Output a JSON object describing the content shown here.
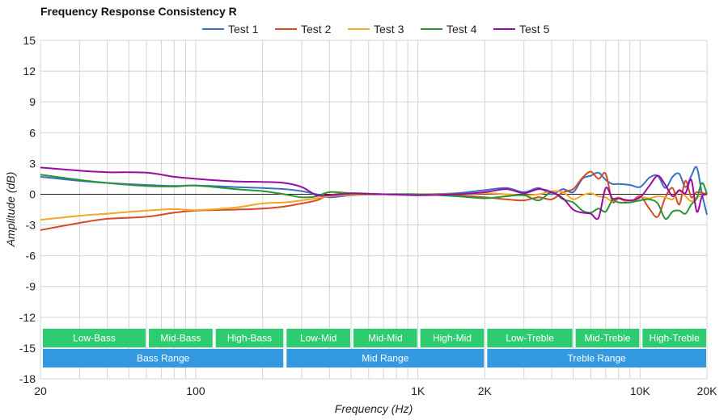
{
  "chart_data": {
    "type": "line",
    "title": "Frequency Response Consistency R",
    "xlabel": "Frequency (Hz)",
    "ylabel": "Amplitude (dB)",
    "x_scale": "log",
    "xlim": [
      20,
      20000
    ],
    "ylim": [
      -18,
      15
    ],
    "y_ticks": [
      15,
      12,
      9,
      6,
      3,
      0,
      -3,
      -6,
      -9,
      -12,
      -15,
      -18
    ],
    "y_tick_labels": [
      "15",
      "12",
      "9",
      "6",
      "3",
      "0",
      "-3",
      "-6",
      "-9",
      "-12",
      "-15",
      "-18"
    ],
    "x_ticks": [
      20,
      100,
      1000,
      2000,
      10000,
      20000
    ],
    "x_tick_labels": [
      "20",
      "100",
      "1K",
      "2K",
      "10K",
      "20K"
    ],
    "grid": true,
    "legend_position": "top-center",
    "series": [
      {
        "name": "Test 1",
        "color": "#3a6fc4",
        "points": [
          [
            20,
            1.7
          ],
          [
            30,
            1.3
          ],
          [
            40,
            1.1
          ],
          [
            60,
            0.9
          ],
          [
            80,
            0.8
          ],
          [
            100,
            0.85
          ],
          [
            150,
            0.7
          ],
          [
            200,
            0.6
          ],
          [
            250,
            0.5
          ],
          [
            300,
            0.3
          ],
          [
            350,
            0.0
          ],
          [
            400,
            -0.3
          ],
          [
            500,
            -0.1
          ],
          [
            700,
            0.0
          ],
          [
            1000,
            0.0
          ],
          [
            1500,
            0.1
          ],
          [
            2000,
            0.4
          ],
          [
            2500,
            0.6
          ],
          [
            3000,
            0.2
          ],
          [
            3500,
            0.6
          ],
          [
            4000,
            0.0
          ],
          [
            4500,
            0.5
          ],
          [
            5000,
            0.2
          ],
          [
            5500,
            1.5
          ],
          [
            6000,
            1.8
          ],
          [
            6500,
            2.1
          ],
          [
            7000,
            1.4
          ],
          [
            7500,
            1.0
          ],
          [
            8000,
            1.0
          ],
          [
            9000,
            0.9
          ],
          [
            10000,
            0.7
          ],
          [
            11000,
            1.6
          ],
          [
            12000,
            1.8
          ],
          [
            13000,
            0.6
          ],
          [
            14000,
            1.7
          ],
          [
            15000,
            2.0
          ],
          [
            16000,
            0.7
          ],
          [
            17000,
            1.8
          ],
          [
            18000,
            2.6
          ],
          [
            19000,
            0.0
          ],
          [
            20000,
            -2.0
          ]
        ]
      },
      {
        "name": "Test 2",
        "color": "#d84a24",
        "points": [
          [
            20,
            -3.5
          ],
          [
            30,
            -2.8
          ],
          [
            40,
            -2.4
          ],
          [
            60,
            -2.2
          ],
          [
            80,
            -1.8
          ],
          [
            100,
            -1.6
          ],
          [
            150,
            -1.5
          ],
          [
            200,
            -1.4
          ],
          [
            250,
            -1.2
          ],
          [
            300,
            -0.9
          ],
          [
            350,
            -0.6
          ],
          [
            400,
            -0.1
          ],
          [
            500,
            0.1
          ],
          [
            700,
            0.0
          ],
          [
            1000,
            0.0
          ],
          [
            1500,
            -0.1
          ],
          [
            2000,
            -0.3
          ],
          [
            2500,
            -0.5
          ],
          [
            3000,
            -0.6
          ],
          [
            3500,
            -0.3
          ],
          [
            4000,
            -0.5
          ],
          [
            4500,
            0.2
          ],
          [
            5000,
            0.5
          ],
          [
            5500,
            1.6
          ],
          [
            6000,
            2.2
          ],
          [
            6500,
            1.5
          ],
          [
            7000,
            2.0
          ],
          [
            7500,
            -0.7
          ],
          [
            8000,
            -0.4
          ],
          [
            9000,
            -0.8
          ],
          [
            10000,
            -0.2
          ],
          [
            11000,
            -1.4
          ],
          [
            12000,
            -2.2
          ],
          [
            13000,
            -0.3
          ],
          [
            14000,
            0.6
          ],
          [
            15000,
            -1.0
          ],
          [
            16000,
            1.3
          ],
          [
            17000,
            -0.3
          ],
          [
            18000,
            0.2
          ],
          [
            20000,
            0.0
          ]
        ]
      },
      {
        "name": "Test 3",
        "color": "#f5a623",
        "points": [
          [
            20,
            -2.5
          ],
          [
            30,
            -2.1
          ],
          [
            40,
            -1.9
          ],
          [
            60,
            -1.6
          ],
          [
            80,
            -1.45
          ],
          [
            100,
            -1.55
          ],
          [
            150,
            -1.3
          ],
          [
            200,
            -0.9
          ],
          [
            250,
            -0.8
          ],
          [
            300,
            -0.6
          ],
          [
            350,
            -0.4
          ],
          [
            400,
            -0.2
          ],
          [
            500,
            -0.05
          ],
          [
            700,
            0.0
          ],
          [
            1000,
            0.0
          ],
          [
            1500,
            0.0
          ],
          [
            2000,
            0.1
          ],
          [
            2500,
            0.0
          ],
          [
            3000,
            -0.1
          ],
          [
            3500,
            0.0
          ],
          [
            4000,
            0.3
          ],
          [
            4500,
            0.2
          ],
          [
            5000,
            -0.5
          ],
          [
            5500,
            -0.1
          ],
          [
            6000,
            0.1
          ],
          [
            6500,
            -0.2
          ],
          [
            7000,
            -0.3
          ],
          [
            7500,
            -0.7
          ],
          [
            8000,
            -0.3
          ],
          [
            9000,
            -0.8
          ],
          [
            10000,
            -0.3
          ],
          [
            11000,
            -0.4
          ],
          [
            12000,
            -0.2
          ],
          [
            13000,
            -0.3
          ],
          [
            14000,
            -0.5
          ],
          [
            15000,
            0.3
          ],
          [
            16000,
            -0.2
          ],
          [
            17000,
            -0.7
          ],
          [
            18000,
            -0.3
          ],
          [
            20000,
            0.0
          ]
        ]
      },
      {
        "name": "Test 4",
        "color": "#2a9433",
        "points": [
          [
            20,
            1.9
          ],
          [
            30,
            1.4
          ],
          [
            40,
            1.1
          ],
          [
            60,
            0.8
          ],
          [
            80,
            0.75
          ],
          [
            100,
            0.85
          ],
          [
            150,
            0.5
          ],
          [
            200,
            0.3
          ],
          [
            250,
            0.0
          ],
          [
            300,
            -0.3
          ],
          [
            350,
            -0.2
          ],
          [
            400,
            0.2
          ],
          [
            500,
            0.1
          ],
          [
            700,
            0.0
          ],
          [
            1000,
            0.0
          ],
          [
            1500,
            -0.2
          ],
          [
            2000,
            -0.4
          ],
          [
            2500,
            -0.2
          ],
          [
            3000,
            -0.1
          ],
          [
            3500,
            -0.6
          ],
          [
            4000,
            0.2
          ],
          [
            4500,
            -0.5
          ],
          [
            5000,
            -0.8
          ],
          [
            5500,
            -1.6
          ],
          [
            6000,
            -1.8
          ],
          [
            6500,
            -1.4
          ],
          [
            7000,
            -1.7
          ],
          [
            7500,
            -0.6
          ],
          [
            8000,
            -0.8
          ],
          [
            9000,
            -0.8
          ],
          [
            10000,
            -0.6
          ],
          [
            11000,
            -0.5
          ],
          [
            12000,
            -0.9
          ],
          [
            13000,
            -2.4
          ],
          [
            14000,
            -1.7
          ],
          [
            15000,
            -1.6
          ],
          [
            16000,
            -1.9
          ],
          [
            17000,
            -1.0
          ],
          [
            18000,
            -0.4
          ],
          [
            19000,
            1.1
          ],
          [
            20000,
            0.0
          ]
        ]
      },
      {
        "name": "Test 5",
        "color": "#9b0aa3",
        "points": [
          [
            20,
            2.6
          ],
          [
            30,
            2.3
          ],
          [
            40,
            2.15
          ],
          [
            60,
            2.1
          ],
          [
            80,
            1.7
          ],
          [
            100,
            1.5
          ],
          [
            150,
            1.25
          ],
          [
            200,
            1.2
          ],
          [
            250,
            1.1
          ],
          [
            300,
            0.7
          ],
          [
            350,
            -0.1
          ],
          [
            400,
            -0.1
          ],
          [
            500,
            0.05
          ],
          [
            700,
            0.0
          ],
          [
            1000,
            -0.1
          ],
          [
            1500,
            0.0
          ],
          [
            2000,
            0.2
          ],
          [
            2500,
            0.5
          ],
          [
            3000,
            0.1
          ],
          [
            3500,
            0.5
          ],
          [
            4000,
            0.2
          ],
          [
            4500,
            -0.4
          ],
          [
            5000,
            -1.5
          ],
          [
            5500,
            -1.8
          ],
          [
            6000,
            -1.9
          ],
          [
            6500,
            -2.3
          ],
          [
            7000,
            0.6
          ],
          [
            7500,
            -0.4
          ],
          [
            8000,
            -0.4
          ],
          [
            9000,
            -0.6
          ],
          [
            10000,
            -0.3
          ],
          [
            11000,
            0.8
          ],
          [
            12000,
            1.8
          ],
          [
            13000,
            0.9
          ],
          [
            14000,
            -0.2
          ],
          [
            15000,
            0.4
          ],
          [
            16000,
            0.1
          ],
          [
            17000,
            1.4
          ],
          [
            18000,
            -1.7
          ],
          [
            19000,
            -0.2
          ],
          [
            20000,
            0.0
          ]
        ]
      }
    ]
  },
  "bands": {
    "sub": [
      {
        "label": "Low-Bass",
        "from": 20,
        "to": 60
      },
      {
        "label": "Mid-Bass",
        "from": 60,
        "to": 120
      },
      {
        "label": "High-Bass",
        "from": 120,
        "to": 250
      },
      {
        "label": "Low-Mid",
        "from": 250,
        "to": 500
      },
      {
        "label": "Mid-Mid",
        "from": 500,
        "to": 1000
      },
      {
        "label": "High-Mid",
        "from": 1000,
        "to": 2000
      },
      {
        "label": "Low-Treble",
        "from": 2000,
        "to": 5000
      },
      {
        "label": "Mid-Treble",
        "from": 5000,
        "to": 10000
      },
      {
        "label": "High-Treble",
        "from": 10000,
        "to": 20000
      }
    ],
    "main": [
      {
        "label": "Bass Range",
        "from": 20,
        "to": 250
      },
      {
        "label": "Mid Range",
        "from": 250,
        "to": 2000
      },
      {
        "label": "Treble Range",
        "from": 2000,
        "to": 20000
      }
    ],
    "sub_color": "#2ecc71",
    "main_color": "#3399e0"
  }
}
